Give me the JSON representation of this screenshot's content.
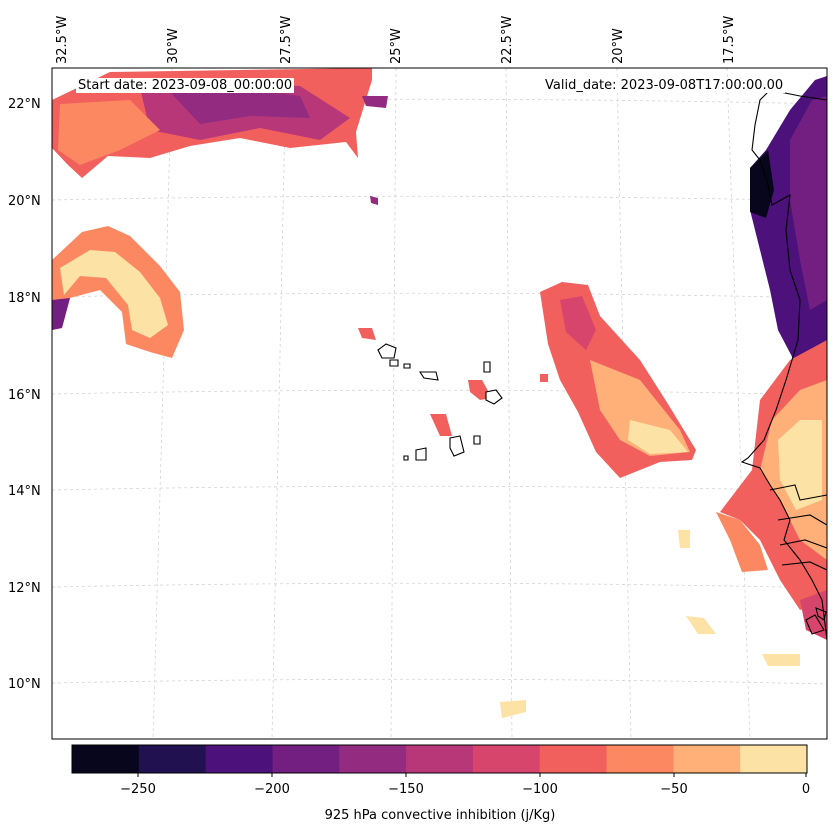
{
  "header": {
    "start_date": "Start date: 2023-09-08_00:00:00",
    "valid_date": "Valid_date: 2023-09-08T17:00:00.00"
  },
  "axes": {
    "lat_labels": [
      "22°N",
      "20°N",
      "18°N",
      "16°N",
      "14°N",
      "12°N",
      "10°N"
    ],
    "lon_labels": [
      "32.5°W",
      "30°W",
      "27.5°W",
      "25°W",
      "22.5°W",
      "20°W",
      "17.5°W"
    ]
  },
  "colorbar": {
    "label": "925 hPa convective inhibition (j/Kg)",
    "ticks": [
      "−250",
      "−200",
      "−150",
      "−100",
      "−50",
      "0"
    ],
    "colors": [
      "#07061c",
      "#221150",
      "#4c117a",
      "#721f81",
      "#932b80",
      "#b73779",
      "#d8456c",
      "#f1605d",
      "#fb8861",
      "#feb078",
      "#fde2a5"
    ]
  },
  "legend_levels": [
    "-275",
    "-250",
    "-225",
    "-200",
    "-175",
    "-150",
    "-125",
    "-100",
    "-75",
    "-50",
    "-25",
    "0"
  ]
}
